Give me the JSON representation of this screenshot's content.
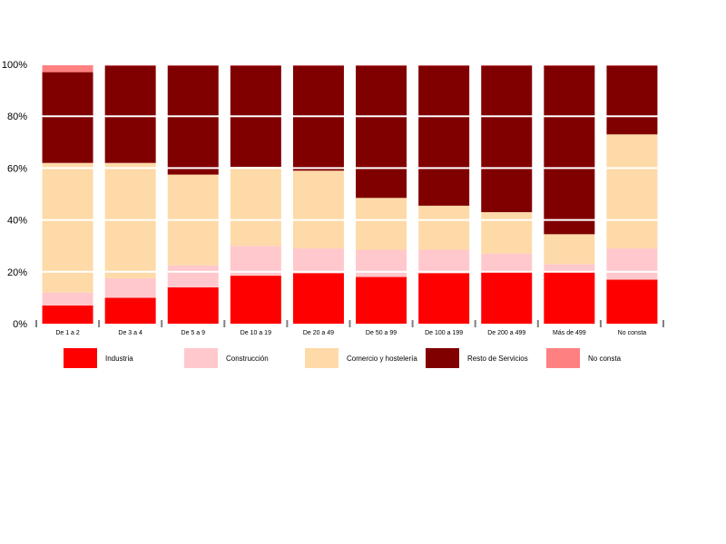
{
  "chart_data": {
    "type": "bar",
    "stacked": true,
    "categories": [
      "De 1 a 2",
      "De 3 a 4",
      "De 5 a 9",
      "De 10 a 19",
      "De 20 a 49",
      "De 50 a 99",
      "De 100 a 199",
      "De 200 a 499",
      "Más de 499",
      "No consta"
    ],
    "series": [
      {
        "name": "Industria",
        "color": "#ff0000",
        "values": [
          7,
          10,
          14,
          18.5,
          19.5,
          18,
          19.5,
          20,
          20,
          17
        ]
      },
      {
        "name": "Construcción",
        "color": "#ffc8cc",
        "values": [
          5,
          7.5,
          8.5,
          11.5,
          9.5,
          10.5,
          9,
          7,
          3,
          12
        ]
      },
      {
        "name": "Comercio y hostelería",
        "color": "#fedaa8",
        "values": [
          50,
          44.5,
          35,
          30.5,
          30,
          20,
          17,
          16,
          11.5,
          44
        ]
      },
      {
        "name": "Resto de Servicios",
        "color": "#800000",
        "values": [
          35,
          37.5,
          42,
          39,
          40.5,
          51,
          54,
          56.5,
          65,
          26.5
        ]
      },
      {
        "name": "No consta",
        "color": "#ff8080",
        "values": [
          3,
          0.5,
          0.5,
          0.5,
          0.5,
          0.5,
          0.5,
          0.5,
          0.5,
          0.5
        ]
      }
    ],
    "yticks": [
      "0%",
      "20%",
      "40%",
      "60%",
      "80%",
      "100%"
    ],
    "ylim": [
      0,
      100
    ],
    "grid": true,
    "legend_position": "bottom"
  }
}
